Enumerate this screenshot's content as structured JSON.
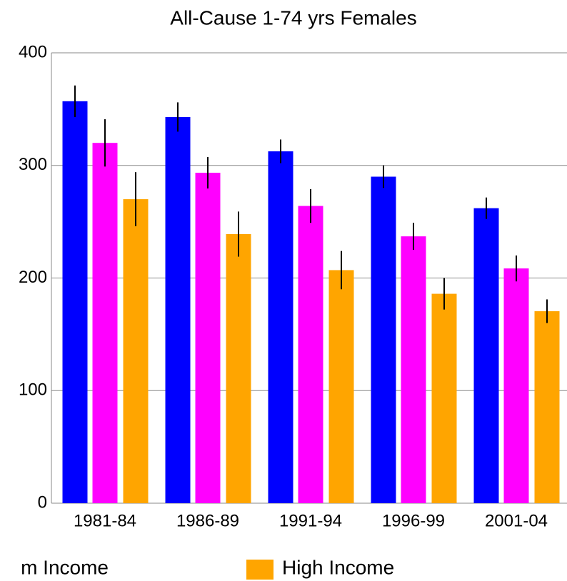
{
  "chart_data": {
    "type": "bar",
    "title": "All-Cause   1-74 yrs   Females",
    "categories": [
      "1981-84",
      "1986-89",
      "1991-94",
      "1996-99",
      "2001-04"
    ],
    "series": [
      {
        "color": "#0000ff",
        "values": [
          357,
          343,
          312.5,
          290,
          262
        ],
        "errors": [
          14,
          13,
          10.5,
          10,
          9.5
        ]
      },
      {
        "name": "m Income",
        "color": "#ff00ff",
        "values": [
          320,
          293.5,
          264,
          237,
          208.5
        ],
        "errors": [
          21,
          14,
          15,
          12,
          11.5
        ]
      },
      {
        "name": "High Income",
        "color": "#ffa500",
        "values": [
          270,
          239,
          207,
          186,
          170.5
        ],
        "errors": [
          24,
          20,
          17,
          14,
          10.5
        ]
      }
    ],
    "ylim": [
      0,
      400
    ],
    "yticks": [
      0,
      100,
      200,
      300,
      400
    ],
    "grid": true
  }
}
